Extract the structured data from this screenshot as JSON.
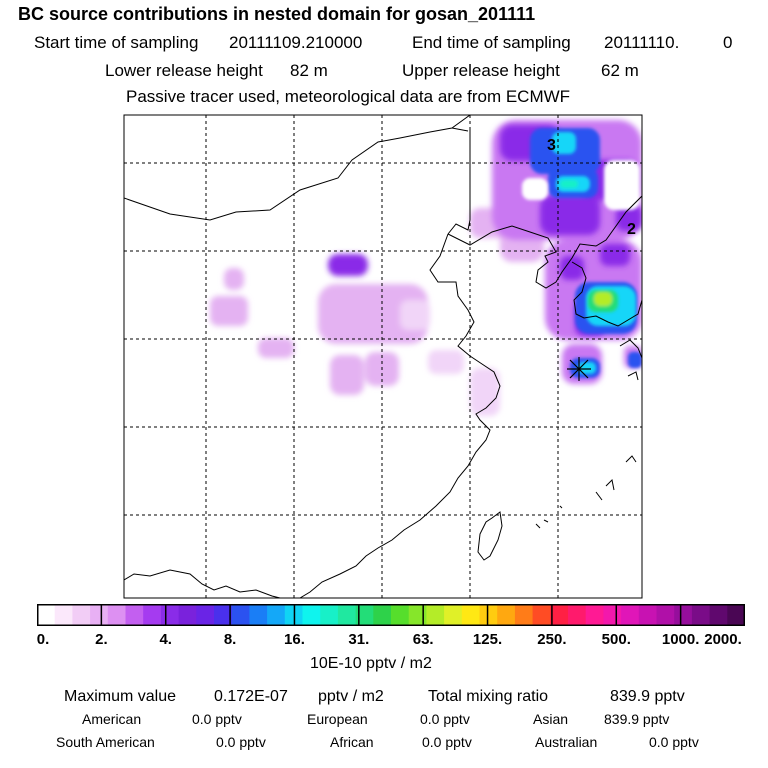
{
  "header": {
    "title": "BC  source contributions in nested domain for gosan_201111",
    "start_label": "Start time of sampling",
    "start_value": "20111109.210000",
    "end_label": "End time of sampling",
    "end_value": "20111110.",
    "end_suffix": "0",
    "lower_label": "Lower release height",
    "lower_value": "82 m",
    "upper_label": "Upper release height",
    "upper_value": "62 m",
    "note": "Passive tracer used, meteorological data are from ECMWF"
  },
  "map": {
    "contour_labels": [
      "3",
      "2"
    ],
    "receptor_marker": "star-marker"
  },
  "colorbar": {
    "colors": [
      "#ffffff",
      "#fbe8fb",
      "#f2cdf6",
      "#e8b0f4",
      "#dd90f2",
      "#c35ff0",
      "#a53bf0",
      "#8a2ce8",
      "#7a22dc",
      "#6a24e6",
      "#4a30ec",
      "#2b52f0",
      "#1a7ef6",
      "#14a8f8",
      "#10d4f4",
      "#0ff4ee",
      "#18f0c8",
      "#20e8a0",
      "#23dd78",
      "#2ed24a",
      "#56de2c",
      "#86e62a",
      "#b4ec28",
      "#e0f028",
      "#ffe814",
      "#ffcc10",
      "#ffa810",
      "#ff7c18",
      "#ff4c24",
      "#ff2044",
      "#ff1a6c",
      "#ff1a94",
      "#f318ac",
      "#e016b8",
      "#c812b2",
      "#b010a8",
      "#960e9c",
      "#7a0c88",
      "#60086e",
      "#4a0654"
    ],
    "tick_labels": [
      "0.",
      "2.",
      "4.",
      "8.",
      "16.",
      "31.",
      "63.",
      "125.",
      "250.",
      "500.",
      "1000.",
      "2000."
    ],
    "units": "10E-10 pptv / m2"
  },
  "stats": {
    "max_label": "Maximum value",
    "max_value": "0.172E-07",
    "max_unit": "pptv / m2",
    "total_label": "Total mixing ratio",
    "total_value": "839.9 pptv",
    "regions": [
      {
        "name": "American",
        "value": "0.0 pptv"
      },
      {
        "name": "European",
        "value": "0.0 pptv"
      },
      {
        "name": "Asian",
        "value": "839.9 pptv"
      },
      {
        "name": "South American",
        "value": "0.0 pptv"
      },
      {
        "name": "African",
        "value": "0.0 pptv"
      },
      {
        "name": "Australian",
        "value": "0.0 pptv"
      }
    ]
  }
}
